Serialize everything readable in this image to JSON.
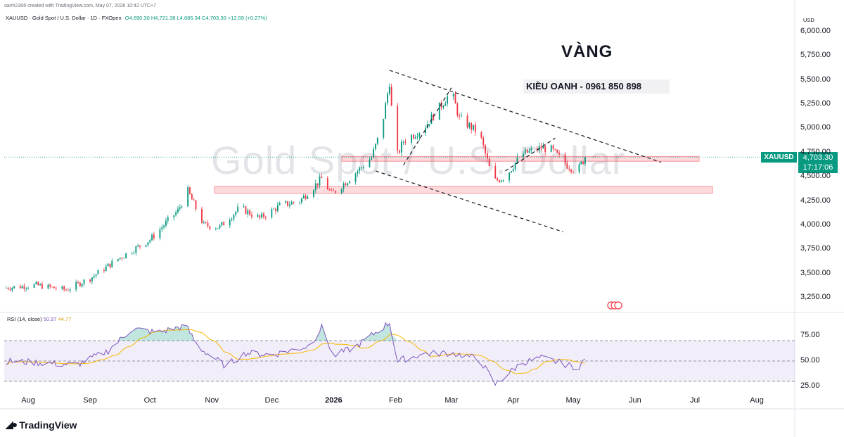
{
  "caption": "oanh2306 created with TradingView.com, May 07, 2026 10:42 UTC+7",
  "header": {
    "symbol": "XAUUSD · Gold Spot / U.S. Dollar · 1D · FXOpen",
    "open": "O4,690.30",
    "high": "H4,721.38",
    "low": "L4,685.34",
    "close": "C4,703.30",
    "change": "+12.59 (+0.27%)"
  },
  "watermark": "Gold Spot / U.S. Dollar",
  "annotation_title": "VÀNG",
  "annotation_contact": "KIỀU OANH - 0961 850 898",
  "currency": "USD",
  "price_tag": {
    "symbol": "XAUUSD",
    "price": "4,703.30",
    "countdown": "17:17:06"
  },
  "rsi": {
    "label": "RSI (14, close)",
    "value": "50.97",
    "ma": "44.77"
  },
  "y_labels": [
    "6,000.00",
    "5,750.00",
    "5,500.00",
    "5,250.00",
    "5,000.00",
    "4,750.00",
    "4,500.00",
    "4,250.00",
    "4,000.00",
    "3,750.00",
    "3,500.00",
    "3,250.00"
  ],
  "rsi_labels": [
    "75.00",
    "50.00",
    "25.00"
  ],
  "x_labels": [
    "Aug",
    "Sep",
    "Oct",
    "Nov",
    "Dec",
    "2026",
    "Feb",
    "Mar",
    "Apr",
    "May",
    "Jun",
    "Jul",
    "Aug"
  ],
  "brand": "TradingView",
  "colors": {
    "up": "#089981",
    "down": "#f23645",
    "rsi": "#7e57c2",
    "rsi_ma": "#f5b800",
    "zone": "#f23645"
  },
  "chart_data": {
    "type": "candlestick",
    "instrument": "XAUUSD",
    "timeframe": "1D",
    "ylim": [
      3150,
      6090
    ],
    "price_path": [
      [
        "2025-07-20",
        3350
      ],
      [
        "2025-08-05",
        3380
      ],
      [
        "2025-08-20",
        3330
      ],
      [
        "2025-09-01",
        3450
      ],
      [
        "2025-09-15",
        3650
      ],
      [
        "2025-10-01",
        3850
      ],
      [
        "2025-10-15",
        4150
      ],
      [
        "2025-10-20",
        4350
      ],
      [
        "2025-10-28",
        4000
      ],
      [
        "2025-11-05",
        3980
      ],
      [
        "2025-11-15",
        4180
      ],
      [
        "2025-11-25",
        4070
      ],
      [
        "2025-12-05",
        4200
      ],
      [
        "2025-12-15",
        4250
      ],
      [
        "2025-12-26",
        4480
      ],
      [
        "2025-12-31",
        4320
      ],
      [
        "2026-01-10",
        4500
      ],
      [
        "2026-01-20",
        4700
      ],
      [
        "2026-01-25",
        5000
      ],
      [
        "2026-01-29",
        5480
      ],
      [
        "2026-02-01",
        4680
      ],
      [
        "2026-02-05",
        4870
      ],
      [
        "2026-02-15",
        5000
      ],
      [
        "2026-03-01",
        5380
      ],
      [
        "2026-03-05",
        5100
      ],
      [
        "2026-03-15",
        4950
      ],
      [
        "2026-03-22",
        4450
      ],
      [
        "2026-03-28",
        4500
      ],
      [
        "2026-04-05",
        4730
      ],
      [
        "2026-04-15",
        4800
      ],
      [
        "2026-04-20",
        4780
      ],
      [
        "2026-04-28",
        4620
      ],
      [
        "2026-05-03",
        4560
      ],
      [
        "2026-05-07",
        4703.3
      ]
    ],
    "zones": [
      [
        4660,
        4710
      ],
      [
        4330,
        4400
      ]
    ],
    "rsi_ylim": [
      20,
      92
    ],
    "rsi_bands": [
      30,
      50,
      70
    ],
    "rsi_path": [
      [
        "2025-07-20",
        50
      ],
      [
        "2025-08-10",
        48
      ],
      [
        "2025-08-25",
        46
      ],
      [
        "2025-09-10",
        60
      ],
      [
        "2025-09-22",
        82
      ],
      [
        "2025-10-05",
        78
      ],
      [
        "2025-10-19",
        85
      ],
      [
        "2025-10-25",
        64
      ],
      [
        "2025-11-08",
        45
      ],
      [
        "2025-11-18",
        58
      ],
      [
        "2025-12-01",
        56
      ],
      [
        "2025-12-20",
        65
      ],
      [
        "2025-12-26",
        83
      ],
      [
        "2026-01-01",
        55
      ],
      [
        "2026-01-12",
        64
      ],
      [
        "2026-01-29",
        88
      ],
      [
        "2026-02-02",
        50
      ],
      [
        "2026-02-15",
        57
      ],
      [
        "2026-03-01",
        58
      ],
      [
        "2026-03-15",
        52
      ],
      [
        "2026-03-23",
        27
      ],
      [
        "2026-04-05",
        48
      ],
      [
        "2026-04-15",
        53
      ],
      [
        "2026-04-25",
        48
      ],
      [
        "2026-05-03",
        43
      ],
      [
        "2026-05-07",
        51
      ]
    ]
  }
}
